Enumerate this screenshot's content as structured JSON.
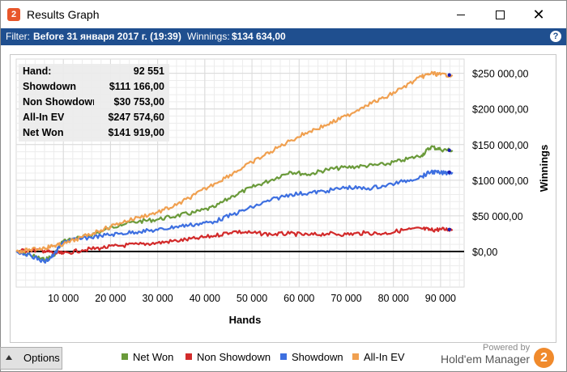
{
  "window": {
    "title": "Results Graph",
    "app_icon": "hm2-logo-icon"
  },
  "filter_bar": {
    "filter_label": "Filter:",
    "filter_value": "Before 31 января 2017 г. (19:39)",
    "winnings_label": "Winnings:",
    "winnings_value": "$134 634,00",
    "help_glyph": "?"
  },
  "stats": [
    {
      "label": "Hand:",
      "value": "92 551"
    },
    {
      "label": "Showdown",
      "value": "$111 166,00"
    },
    {
      "label": "Non Showdown",
      "value": "$30 753,00"
    },
    {
      "label": "All-In EV",
      "value": "$247 574,60"
    },
    {
      "label": "Net Won",
      "value": "$141 919,00"
    }
  ],
  "options_button": {
    "label": "Options"
  },
  "footer": {
    "powered_by": "Powered by",
    "brand": "Hold'em Manager",
    "brand_glyph": "2"
  },
  "chart_data": {
    "type": "line",
    "xlabel": "Hands",
    "ylabel": "Winnings",
    "xlim": [
      0,
      95000
    ],
    "ylim": [
      -50000,
      270000
    ],
    "x_ticks": [
      10000,
      20000,
      30000,
      40000,
      50000,
      60000,
      70000,
      80000,
      90000
    ],
    "x_tick_labels": [
      "10 000",
      "20 000",
      "30 000",
      "40 000",
      "50 000",
      "60 000",
      "70 000",
      "80 000",
      "90 000"
    ],
    "y_ticks": [
      0,
      50000,
      100000,
      150000,
      200000,
      250000
    ],
    "y_tick_labels": [
      "$0,00",
      "$50 000,00",
      "$100 000,00",
      "$150 000,00",
      "$200 000,00",
      "$250 000,00"
    ],
    "grid": true,
    "legend_position": "bottom",
    "series": [
      {
        "name": "Net Won",
        "color": "#6a9a3a",
        "x": [
          0,
          3000,
          6000,
          8000,
          10000,
          14000,
          18000,
          22000,
          26000,
          30000,
          34000,
          38000,
          42000,
          46000,
          50000,
          54000,
          58000,
          62000,
          66000,
          70000,
          74000,
          78000,
          82000,
          86000,
          88000,
          90000,
          92551
        ],
        "y": [
          0,
          -5000,
          -12000,
          -5000,
          15000,
          20000,
          28000,
          38000,
          42000,
          45000,
          50000,
          55000,
          62000,
          78000,
          90000,
          100000,
          112000,
          108000,
          115000,
          118000,
          120000,
          122000,
          128000,
          135000,
          147000,
          143000,
          141919
        ]
      },
      {
        "name": "Non Showdown",
        "color": "#d22a2a",
        "x": [
          0,
          3000,
          6000,
          8000,
          10000,
          14000,
          18000,
          22000,
          26000,
          30000,
          34000,
          38000,
          42000,
          46000,
          50000,
          54000,
          58000,
          62000,
          66000,
          70000,
          74000,
          78000,
          82000,
          86000,
          88000,
          90000,
          92551
        ],
        "y": [
          0,
          2000,
          1000,
          -2000,
          -3000,
          2000,
          5000,
          8000,
          10000,
          12000,
          15000,
          18000,
          22000,
          28000,
          26000,
          24000,
          25000,
          23000,
          25000,
          24000,
          26000,
          25000,
          30000,
          32000,
          30000,
          31000,
          30753
        ]
      },
      {
        "name": "Showdown",
        "color": "#3d6fe0",
        "x": [
          0,
          3000,
          6000,
          8000,
          10000,
          14000,
          18000,
          22000,
          26000,
          30000,
          34000,
          38000,
          42000,
          46000,
          50000,
          54000,
          58000,
          62000,
          66000,
          70000,
          74000,
          78000,
          82000,
          86000,
          88000,
          90000,
          92551
        ],
        "y": [
          0,
          -5000,
          -15000,
          -5000,
          14000,
          18000,
          22000,
          25000,
          28000,
          30000,
          35000,
          38000,
          42000,
          52000,
          62000,
          72000,
          80000,
          82000,
          85000,
          90000,
          88000,
          92000,
          98000,
          105000,
          112000,
          110000,
          111166
        ]
      },
      {
        "name": "All-In EV",
        "color": "#f0a050",
        "x": [
          0,
          3000,
          6000,
          8000,
          10000,
          14000,
          18000,
          22000,
          26000,
          30000,
          34000,
          38000,
          42000,
          46000,
          50000,
          54000,
          58000,
          62000,
          66000,
          70000,
          74000,
          78000,
          82000,
          86000,
          88000,
          90000,
          92551
        ],
        "y": [
          0,
          2000,
          5000,
          8000,
          10000,
          20000,
          30000,
          40000,
          48000,
          55000,
          65000,
          80000,
          95000,
          110000,
          125000,
          140000,
          155000,
          168000,
          178000,
          190000,
          205000,
          215000,
          230000,
          245000,
          250000,
          248000,
          247575
        ]
      }
    ]
  }
}
